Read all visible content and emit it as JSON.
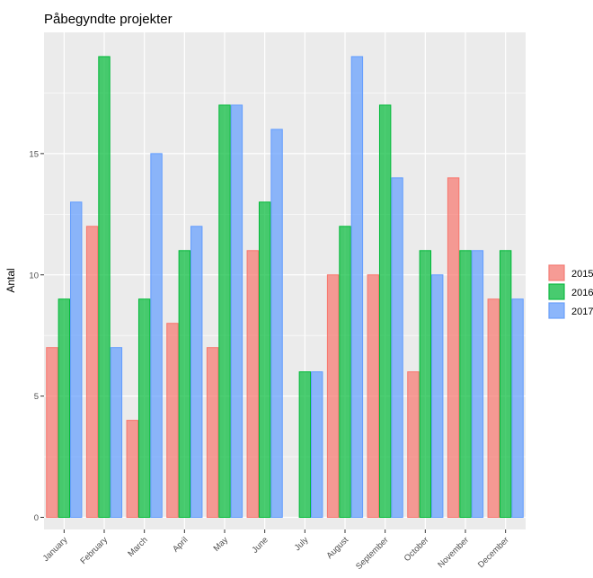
{
  "chart_data": {
    "type": "bar",
    "title": "Påbegyndte projekter",
    "xlabel": "",
    "ylabel": "Antal",
    "categories": [
      "January",
      "February",
      "March",
      "April",
      "May",
      "June",
      "July",
      "August",
      "September",
      "October",
      "November",
      "December"
    ],
    "series": [
      {
        "name": "2015",
        "color": "#F8766D",
        "values": [
          7,
          12,
          4,
          8,
          7,
          11,
          0,
          10,
          10,
          6,
          14,
          9
        ]
      },
      {
        "name": "2016",
        "color": "#00BA38",
        "values": [
          9,
          19,
          9,
          11,
          17,
          13,
          6,
          12,
          17,
          11,
          11,
          11
        ]
      },
      {
        "name": "2017",
        "color": "#619CFF",
        "values": [
          13,
          7,
          15,
          12,
          17,
          16,
          6,
          19,
          14,
          10,
          11,
          9
        ]
      }
    ],
    "yticks": [
      0,
      5,
      10,
      15
    ],
    "ylim": [
      -0.5,
      20.0
    ],
    "grid": true,
    "legend_position": "right",
    "panel_background": "#EBEBEB",
    "grid_color": "#FFFFFF"
  }
}
